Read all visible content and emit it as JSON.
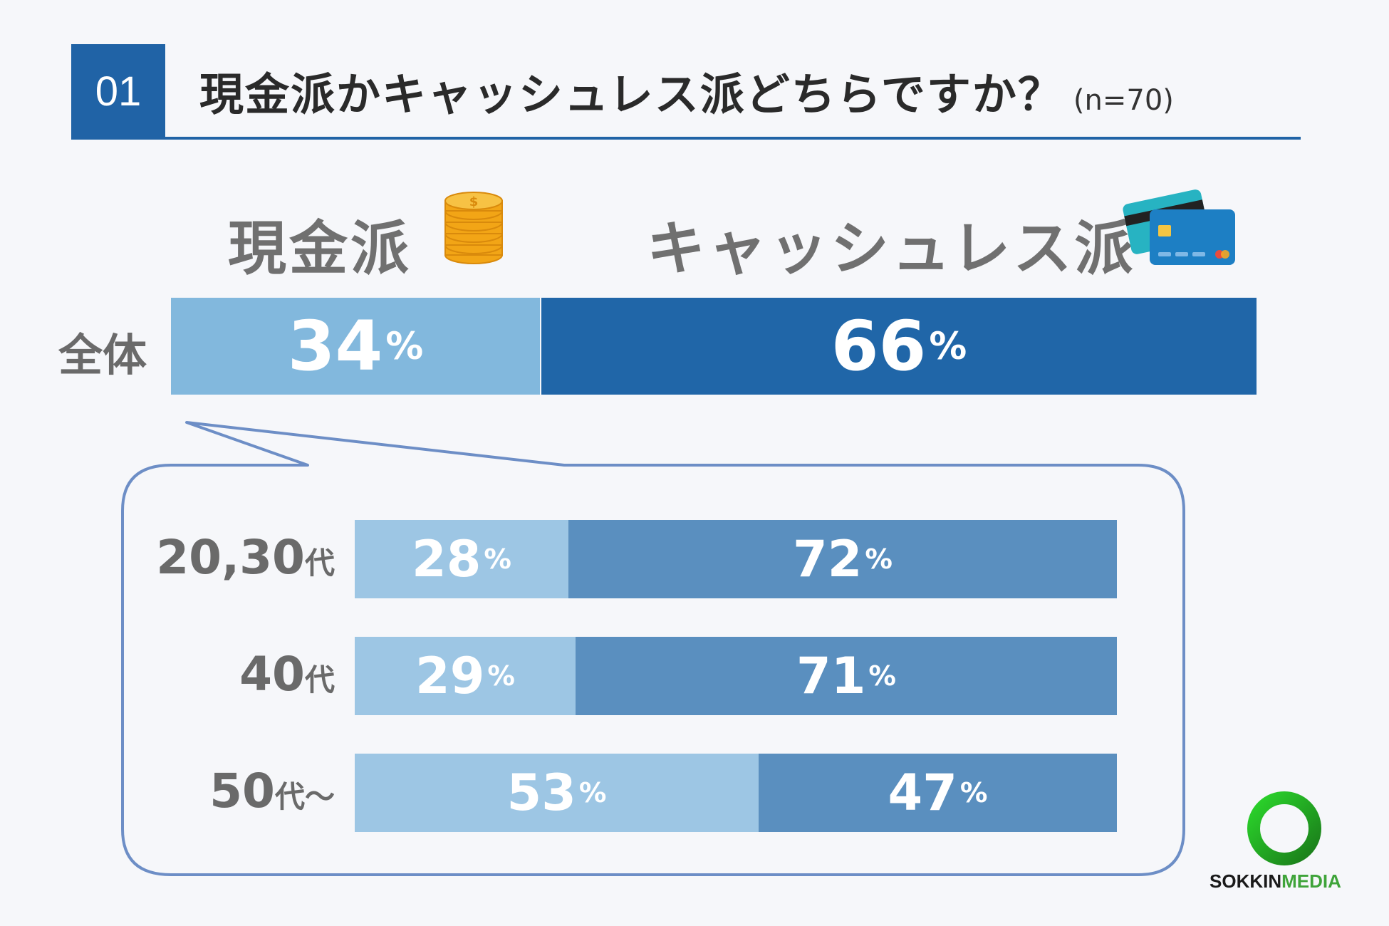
{
  "header": {
    "badge": "01",
    "title": "現金派かキャッシュレス派どちらですか？",
    "sample": "(n=70)"
  },
  "legend": {
    "cash": "現金派",
    "cashless": "キャッシュレス派"
  },
  "icons": {
    "cash": "coin-stack-icon",
    "cashless": "credit-cards-icon"
  },
  "colors": {
    "cash_overall": "#82b8dd",
    "cashless_overall": "#2066a8",
    "cash_group": "#9dc6e4",
    "cashless_group": "#5a8fbf",
    "bubble_stroke": "#6d8ec6"
  },
  "chart_data": {
    "type": "bar",
    "stacked": true,
    "orientation": "horizontal",
    "title": "現金派かキャッシュレス派どちらですか？",
    "categories": [
      "全体",
      "20,30代",
      "40代",
      "50代～"
    ],
    "series": [
      {
        "name": "現金派",
        "values": [
          34,
          28,
          29,
          53
        ]
      },
      {
        "name": "キャッシュレス派",
        "values": [
          66,
          72,
          71,
          47
        ]
      }
    ],
    "unit": "%",
    "xlim": [
      0,
      100
    ]
  },
  "rows": [
    {
      "label": "全体",
      "cash_text": "34",
      "cashless_text": "66"
    },
    {
      "label_num": "20,30",
      "label_suffix": "代",
      "cash_text": "28",
      "cashless_text": "72"
    },
    {
      "label_num": "40",
      "label_suffix": "代",
      "cash_text": "29",
      "cashless_text": "71"
    },
    {
      "label_num": "50",
      "label_suffix": "代～",
      "cash_text": "53",
      "cashless_text": "47"
    }
  ],
  "percent_sign": "%",
  "logo": {
    "part1": "SOKKIN",
    "part2": "MEDIA"
  }
}
